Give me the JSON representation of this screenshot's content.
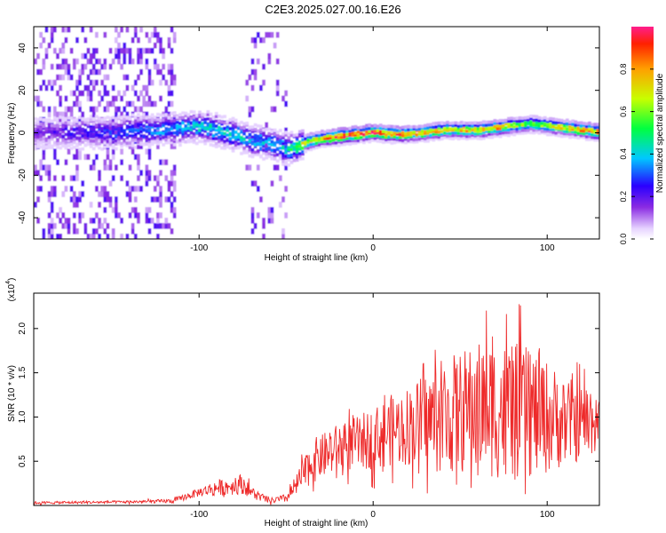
{
  "figure": {
    "title": "C2E3.2025.027.00.16.E26"
  },
  "colors": {
    "snr_line": "#ee2a2a",
    "axis": "#000000",
    "background": "#ffffff"
  },
  "chart_data": [
    {
      "type": "heatmap",
      "name": "spectrogram",
      "xlabel": "Height of straight line (km)",
      "ylabel": "Frequency (Hz)",
      "xlim": [
        -195,
        130
      ],
      "ylim": [
        -50,
        50
      ],
      "xticks": [
        -100,
        0,
        100
      ],
      "xtick_labels": [
        "-100",
        "0",
        "100"
      ],
      "yticks": [
        40,
        20,
        0,
        -20,
        -40
      ],
      "ytick_labels": [
        "40",
        "20",
        "0",
        "-20",
        "-40"
      ],
      "colormap": "rainbow (purple low → red high)",
      "colorbar": {
        "label": "Normalized spectral amplitude",
        "range": [
          0.0,
          1.0
        ],
        "ticks": [
          0.0,
          0.2,
          0.4,
          0.6,
          0.8
        ],
        "tick_labels": [
          "0.0",
          "0.2",
          "0.4",
          "0.6",
          "0.8"
        ]
      },
      "ridge": {
        "x": [
          -190,
          -170,
          -150,
          -130,
          -110,
          -100,
          -90,
          -80,
          -70,
          -60,
          -50,
          -45,
          -40,
          -30,
          -20,
          -10,
          0,
          10,
          20,
          30,
          40,
          50,
          60,
          70,
          80,
          90,
          100,
          110,
          120,
          130
        ],
        "frequency_hz": [
          0,
          0,
          0,
          1,
          2,
          3,
          1,
          -1,
          -4,
          -5,
          -8,
          -7,
          -5,
          -3,
          -2,
          -1,
          0,
          -1,
          -1,
          0,
          1,
          1,
          1,
          2,
          3,
          4,
          3,
          2,
          1,
          0
        ],
        "amplitude": [
          0.2,
          0.25,
          0.3,
          0.35,
          0.4,
          0.45,
          0.45,
          0.45,
          0.4,
          0.4,
          0.45,
          0.55,
          0.75,
          0.85,
          0.95,
          0.95,
          1.0,
          0.95,
          0.9,
          0.85,
          0.8,
          0.8,
          0.85,
          0.85,
          0.7,
          0.65,
          0.7,
          0.8,
          0.85,
          0.9
        ]
      },
      "grid": false
    },
    {
      "type": "line",
      "name": "snr",
      "xlabel": "Height of straight line (km)",
      "ylabel": "SNR (10 * v/v)",
      "y_multiplier_label": "(x10",
      "y_multiplier_exp": "4",
      "y_multiplier_close": ")",
      "xlim": [
        -195,
        130
      ],
      "ylim": [
        0,
        24000
      ],
      "xticks": [
        -100,
        0,
        100
      ],
      "xtick_labels": [
        "-100",
        "0",
        "100"
      ],
      "yticks": [
        5000,
        10000,
        15000,
        20000
      ],
      "ytick_labels": [
        "0.5",
        "1.0",
        "1.5",
        "2.0"
      ],
      "envelope": {
        "x": [
          -195,
          -140,
          -115,
          -100,
          -90,
          -80,
          -75,
          -70,
          -60,
          -50,
          -45,
          -40,
          -35,
          -30,
          -20,
          -10,
          0,
          10,
          20,
          30,
          40,
          50,
          60,
          70,
          80,
          90,
          100,
          110,
          120,
          130
        ],
        "mean": [
          300,
          400,
          500,
          1500,
          2000,
          2200,
          2500,
          1500,
          500,
          800,
          2000,
          3500,
          5000,
          5500,
          6500,
          7000,
          7500,
          8500,
          9000,
          9500,
          10000,
          10500,
          11000,
          11000,
          10500,
          10500,
          10000,
          9500,
          9500,
          10000
        ],
        "spread": [
          150,
          150,
          250,
          500,
          900,
          1000,
          1200,
          700,
          300,
          500,
          1200,
          1800,
          2500,
          2500,
          2800,
          3000,
          3500,
          4000,
          4500,
          5500,
          6500,
          7000,
          7500,
          8000,
          8000,
          7500,
          6500,
          5000,
          4500,
          4000
        ]
      },
      "grid": false
    }
  ]
}
